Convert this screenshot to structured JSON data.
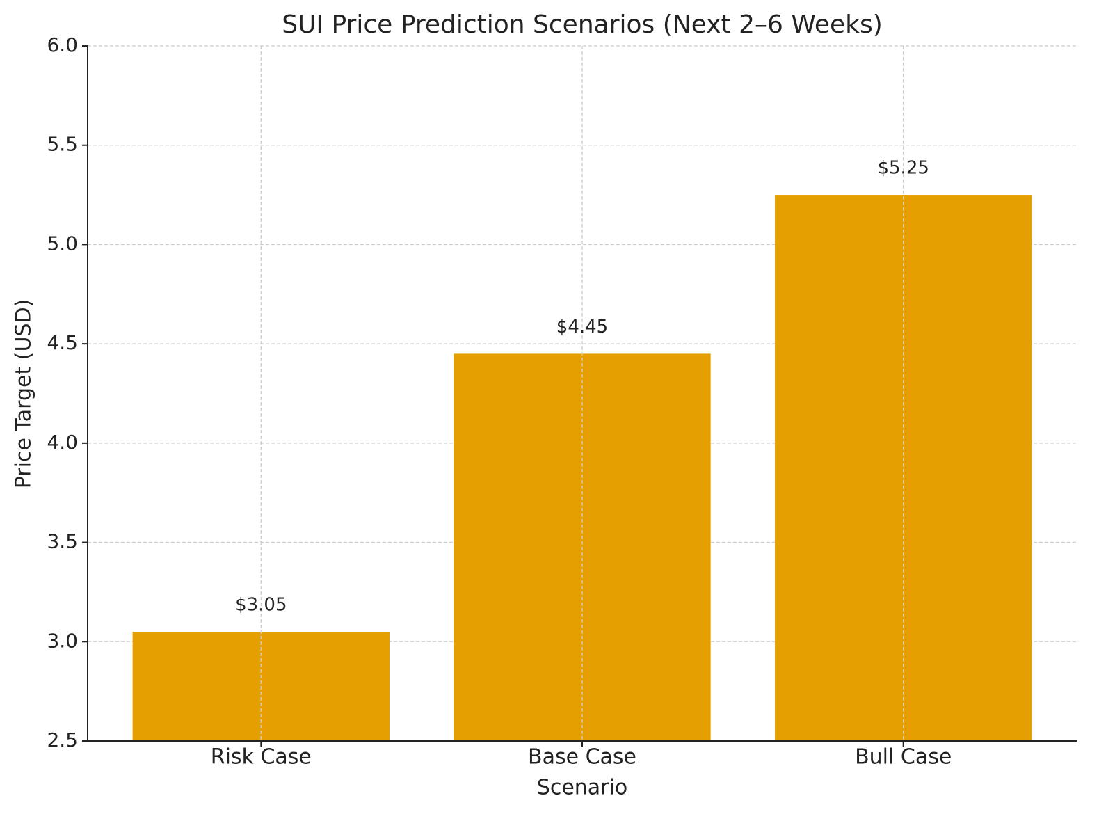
{
  "chart_data": {
    "type": "bar",
    "title": "SUI Price Prediction Scenarios (Next 2–6 Weeks)",
    "x_label": "Scenario",
    "y_label": "Price Target (USD)",
    "categories": [
      "Risk Case",
      "Base Case",
      "Bull Case"
    ],
    "values": [
      3.05,
      4.45,
      5.25
    ],
    "value_labels": [
      "$3.05",
      "$4.45",
      "$5.25"
    ],
    "color": "#e69f00",
    "ylim": [
      2.5,
      6.0
    ],
    "yticks": [
      2.5,
      {
        "value": 3,
        "label": "3.0"
      },
      3.5,
      {
        "value": 4,
        "label": "4.0"
      },
      4.5,
      {
        "value": 5,
        "label": "5.0"
      },
      5.5,
      {
        "value": 6,
        "label": "6.0"
      }
    ],
    "grid": true
  }
}
